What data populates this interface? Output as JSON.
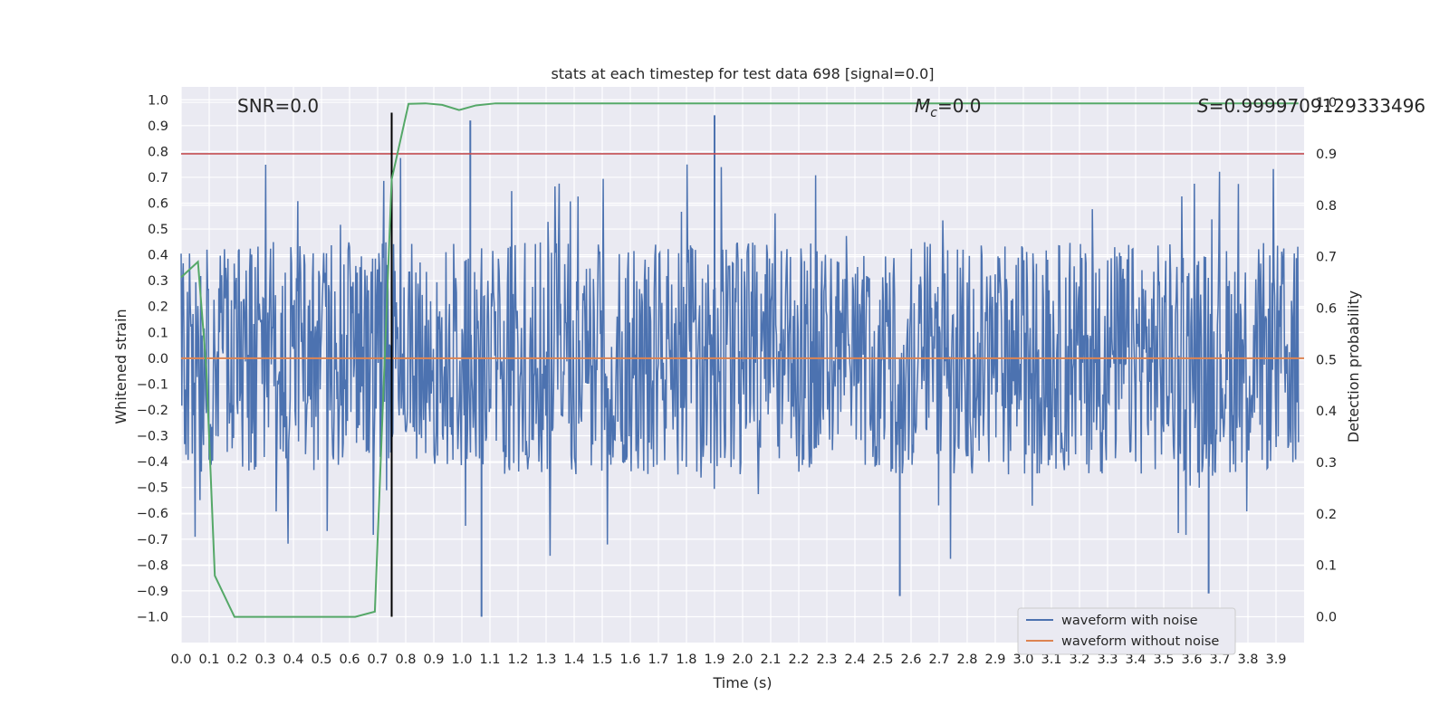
{
  "chart_data": {
    "type": "line",
    "title": "stats at each timestep for test data 698 [signal=0.0]",
    "xlabel": "Time (s)",
    "ylabel_left": "Whitened strain",
    "ylabel_right": "Detection probability",
    "xlim": [
      0.0,
      4.0
    ],
    "ylim_left": [
      -1.1,
      1.05
    ],
    "ylim_right": [
      -0.05,
      1.03
    ],
    "grid": true,
    "legend_location": "lower right",
    "annotations": {
      "snr": "SNR=0.0",
      "mc_symbol": "M",
      "mc_sub": "c",
      "mc_value": "=0.0",
      "s_symbol": "S",
      "s_value": "=0.9999709129333496"
    },
    "x_ticks": [
      "0.0",
      "0.1",
      "0.2",
      "0.3",
      "0.4",
      "0.5",
      "0.6",
      "0.7",
      "0.8",
      "0.9",
      "1.0",
      "1.1",
      "1.2",
      "1.3",
      "1.4",
      "1.5",
      "1.6",
      "1.7",
      "1.8",
      "1.9",
      "2.0",
      "2.1",
      "2.2",
      "2.3",
      "2.4",
      "2.5",
      "2.6",
      "2.7",
      "2.8",
      "2.9",
      "3.0",
      "3.1",
      "3.2",
      "3.3",
      "3.4",
      "3.5",
      "3.6",
      "3.7",
      "3.8",
      "3.9"
    ],
    "y_ticks_left": [
      "1.0",
      "0.9",
      "0.8",
      "0.7",
      "0.6",
      "0.5",
      "0.4",
      "0.3",
      "0.2",
      "0.1",
      "0.0",
      "-0.1",
      "-0.2",
      "-0.3",
      "-0.4",
      "-0.5",
      "-0.6",
      "-0.7",
      "-0.8",
      "-0.9",
      "-1.0"
    ],
    "y_ticks_right": [
      "1.0",
      "0.9",
      "0.8",
      "0.7",
      "0.6",
      "0.5",
      "0.4",
      "0.3",
      "0.2",
      "0.1",
      "0.0"
    ],
    "series": [
      {
        "name": "waveform with noise",
        "axis": "left",
        "color": "#4c72b0",
        "style": "noise",
        "amplitude_typical": 0.45,
        "peak_max": 0.94,
        "peak_min": -1.0
      },
      {
        "name": "waveform without noise",
        "axis": "left",
        "color": "#dd8452",
        "x": [
          0.0,
          4.0
        ],
        "y": [
          0.0,
          0.0
        ]
      },
      {
        "axis": "right",
        "color": "#55a868",
        "x": [
          0.0,
          0.06,
          0.09,
          0.12,
          0.19,
          0.62,
          0.69,
          0.75,
          0.81,
          0.87,
          0.93,
          0.99,
          1.05,
          1.12,
          3.98
        ],
        "y": [
          0.66,
          0.69,
          0.48,
          0.08,
          0.0,
          0.0,
          0.01,
          0.85,
          0.997,
          0.998,
          0.995,
          0.985,
          0.994,
          0.998,
          0.998
        ]
      }
    ],
    "reference_lines": [
      {
        "orientation": "horizontal",
        "axis": "right",
        "value": 0.9,
        "color": "#c44e52"
      },
      {
        "orientation": "vertical",
        "axis": "x",
        "value": 0.75,
        "y_from": -1.0,
        "y_to": 0.95,
        "color": "#000000"
      }
    ]
  }
}
